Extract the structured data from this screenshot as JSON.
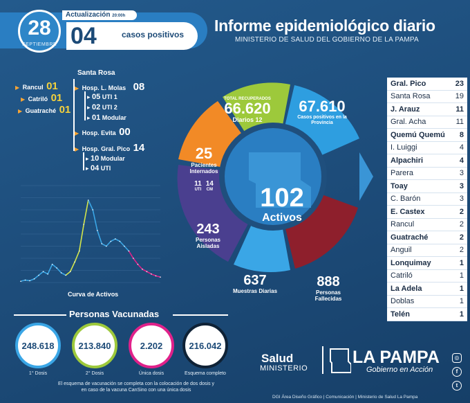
{
  "header": {
    "day": "28",
    "month": "SEPTIEMBRE",
    "update_label": "Actualización",
    "update_time": "20:00h",
    "new_cases": "04",
    "new_cases_label": "casos positivos",
    "title": "Informe epidemiológico diario",
    "subtitle": "MINISTERIO DE SALUD DEL GOBIERNO DE LA PAMPA"
  },
  "hospitalized": {
    "rancul": {
      "label": "Rancul",
      "value": "01"
    },
    "catrilo": {
      "label": "Catriló",
      "value": "01"
    },
    "guatrache": {
      "label": "Guatraché",
      "value": "01"
    },
    "santa_rosa_label": "Santa Rosa",
    "molas": {
      "label": "Hosp. L. Molas",
      "value": "08"
    },
    "molas_uti1": {
      "num": "05",
      "label": "UTI 1"
    },
    "molas_uti2": {
      "num": "02",
      "label": "UTI 2"
    },
    "molas_modular": {
      "num": "01",
      "label": "Modular"
    },
    "evita": {
      "label": "Hosp. Evita",
      "value": "00"
    },
    "pico": {
      "label": "Hosp. Gral. Pico",
      "value": "14"
    },
    "pico_modular": {
      "num": "10",
      "label": "Modular"
    },
    "pico_uti": {
      "num": "04",
      "label": "UTI"
    }
  },
  "chart_data": {
    "type": "line",
    "title": "",
    "caption": "Curva de Activos",
    "xlabel": "",
    "ylabel": "",
    "series": [
      {
        "values": [
          10,
          20,
          15,
          30,
          60,
          90,
          70,
          150,
          120,
          80,
          60,
          90,
          170,
          260,
          480,
          680,
          600,
          430,
          320,
          300,
          340,
          360,
          340,
          300,
          260,
          200,
          150,
          110,
          90,
          70,
          55,
          45
        ]
      }
    ],
    "ylim": [
      0,
      800
    ],
    "grid": true
  },
  "center": {
    "recovered_label": "TOTAL RECUPERADOS",
    "recovered": "66.620",
    "daily_label": "Diarios",
    "daily": "12",
    "positive_total": "67.610",
    "positive_label": "Casos positivos en la Provincia",
    "interned": "25",
    "interned_label": "Pacientes Internados",
    "uti": "11",
    "uti_label": "UTI",
    "cm": "14",
    "cm_label": "CM",
    "active": "102",
    "active_label": "Activos",
    "isolated": "243",
    "isolated_label": "Personas Aisladas",
    "samples": "637",
    "samples_label": "Muestras Diarias",
    "deceased": "888",
    "deceased_label": "Personas Fallecidas"
  },
  "vaccinated": {
    "title": "Personas Vacunadas",
    "first": {
      "value": "248.618",
      "label": "1° Dosis"
    },
    "second": {
      "value": "213.840",
      "label": "2° Dosis"
    },
    "single": {
      "value": "2.202",
      "label": "Única dosis"
    },
    "complete": {
      "value": "216.042",
      "label": "Esquema completo"
    },
    "note": "El esquema de vacunación se completa con la colocación de dos dosis y en caso de la vacuna CanSino con una única dosis"
  },
  "table": [
    {
      "name": "Gral. Pico",
      "value": "23",
      "bold": true
    },
    {
      "name": "Santa Rosa",
      "value": "19",
      "bold": false
    },
    {
      "name": "J. Arauz",
      "value": "11",
      "bold": true
    },
    {
      "name": "Gral. Acha",
      "value": "11",
      "bold": false
    },
    {
      "name": "Quemú Quemú",
      "value": "8",
      "bold": true
    },
    {
      "name": "I. Luiggi",
      "value": "4",
      "bold": false
    },
    {
      "name": "Alpachiri",
      "value": "4",
      "bold": true
    },
    {
      "name": "Parera",
      "value": "3",
      "bold": false
    },
    {
      "name": "Toay",
      "value": "3",
      "bold": true
    },
    {
      "name": "C. Barón",
      "value": "3",
      "bold": false
    },
    {
      "name": "E. Castex",
      "value": "2",
      "bold": true
    },
    {
      "name": "Rancul",
      "value": "2",
      "bold": false
    },
    {
      "name": "Guatraché",
      "value": "2",
      "bold": true
    },
    {
      "name": "Anguil",
      "value": "2",
      "bold": false
    },
    {
      "name": "Lonquimay",
      "value": "1",
      "bold": true
    },
    {
      "name": "Catriló",
      "value": "1",
      "bold": false
    },
    {
      "name": "La Adela",
      "value": "1",
      "bold": true
    },
    {
      "name": "Doblas",
      "value": "1",
      "bold": false
    },
    {
      "name": "Telén",
      "value": "1",
      "bold": true
    }
  ],
  "footer": {
    "salud": "Salud",
    "ministerio": "MINISTERIO",
    "la_pampa": "LA PAMPA",
    "gobierno": "Gobierno en Acción",
    "credits": "DGI Área Diseño Gráfico | Comunicación | Ministerio de Salud La Pampa"
  },
  "colors": {
    "recovered": "#9dc93b",
    "positive": "#2e9ee0",
    "interned": "#f28a26",
    "isolated": "#4a3f8f",
    "samples": "#3aa6e6",
    "deceased": "#8e1f2c",
    "center": "#2a7ec2"
  }
}
